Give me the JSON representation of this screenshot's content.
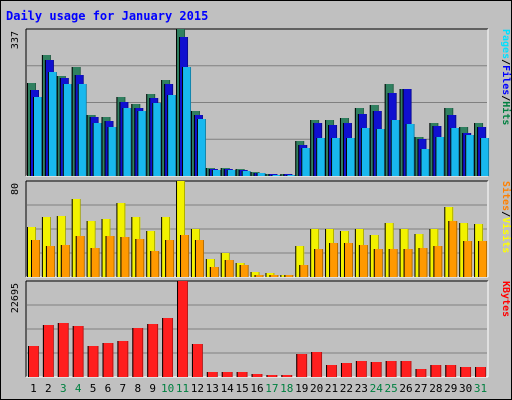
{
  "chart_data": {
    "type": "bar",
    "title": "Daily usage for January 2015",
    "categories": [
      "1",
      "2",
      "3",
      "4",
      "5",
      "6",
      "7",
      "8",
      "9",
      "10",
      "11",
      "12",
      "13",
      "14",
      "15",
      "16",
      "17",
      "18",
      "19",
      "20",
      "21",
      "22",
      "23",
      "24",
      "25",
      "26",
      "27",
      "28",
      "29",
      "30",
      "31"
    ],
    "weekend_days": [
      "3",
      "4",
      "10",
      "11",
      "17",
      "18",
      "24",
      "25",
      "31"
    ],
    "panels": [
      {
        "name": "hits_files_pages",
        "ymax": 337,
        "max_label": "337",
        "legend": [
          "Pages",
          "/",
          "Files",
          "/",
          "Hits"
        ],
        "legend_colors": [
          "#00e0ff",
          "#000000",
          "#0000ff",
          "#000000",
          "#008040"
        ],
        "series": [
          {
            "name": "Hits",
            "color": "#308060",
            "values": [
              214,
              278,
              230,
              250,
              140,
              135,
              180,
              165,
              188,
              220,
              337,
              148,
              18,
              18,
              15,
              10,
              5,
              5,
              80,
              128,
              128,
              132,
              155,
              162,
              210,
              200,
              90,
              122,
              155,
              112,
              122
            ]
          },
          {
            "name": "Files",
            "color": "#1010d0",
            "values": [
              197,
              265,
              224,
              232,
              135,
              125,
              170,
              157,
              178,
              210,
              318,
              140,
              16,
              16,
              13,
              8,
              4,
              4,
              72,
              122,
              118,
              122,
              142,
              150,
              190,
              200,
              85,
              115,
              140,
              98,
              112
            ]
          },
          {
            "name": "Pages",
            "color": "#18b8ee",
            "values": [
              180,
              238,
              210,
              212,
              122,
              112,
              155,
              150,
              168,
              185,
              250,
              130,
              14,
              14,
              11,
              7,
              3,
              3,
              65,
              88,
              88,
              88,
              110,
              108,
              128,
              120,
              62,
              90,
              110,
              95,
              86
            ]
          }
        ]
      },
      {
        "name": "visits_sites",
        "ymax": 80,
        "max_label": "80",
        "legend": [
          "Sites",
          "/",
          "Visits"
        ],
        "legend_colors": [
          "#ff8000",
          "#000000",
          "#ffff00"
        ],
        "series": [
          {
            "name": "Visits",
            "color": "#f2f200",
            "values": [
              42,
              50,
              51,
              65,
              47,
              48,
              62,
              50,
              38,
              50,
              80,
              40,
              15,
              20,
              12,
              4,
              3,
              2,
              26,
              40,
              40,
              38,
              40,
              35,
              45,
              40,
              36,
              40,
              58,
              45,
              44
            ]
          },
          {
            "name": "Sites",
            "color": "#ff9900",
            "values": [
              31,
              26,
              27,
              34,
              24,
              34,
              33,
              32,
              22,
              31,
              35,
              31,
              8,
              14,
              10,
              2,
              2,
              2,
              10,
              23,
              28,
              28,
              27,
              23,
              23,
              23,
              24,
              26,
              47,
              30,
              30
            ]
          }
        ]
      },
      {
        "name": "kbytes",
        "ymax": 22695,
        "max_label": "22695",
        "legend": [
          "KBytes"
        ],
        "legend_colors": [
          "#ff0000"
        ],
        "series": [
          {
            "name": "KBytes",
            "color": "#ff1e1e",
            "values": [
              7400,
              12400,
              12700,
              12000,
              7300,
              8000,
              8600,
              11700,
              12600,
              14000,
              22695,
              7900,
              1200,
              1200,
              1100,
              700,
              500,
              500,
              5500,
              6000,
              2900,
              3200,
              3900,
              3500,
              3900,
              3900,
              1800,
              2800,
              2800,
              2400,
              2300
            ]
          }
        ]
      }
    ]
  }
}
